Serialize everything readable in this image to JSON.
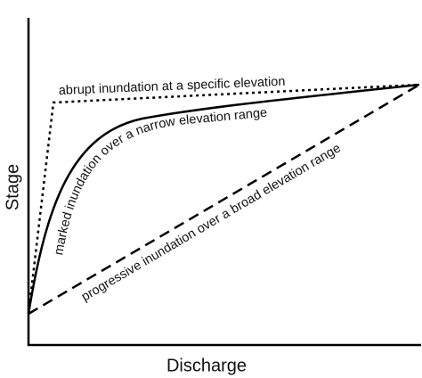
{
  "axes": {
    "y_label": "Stage",
    "x_label": "Discharge"
  },
  "annotations": [
    "abrupt inundation at a specific elevation",
    "marked inundation over a narrow elevation range",
    "progressive inundation over a broad elevation range"
  ]
}
